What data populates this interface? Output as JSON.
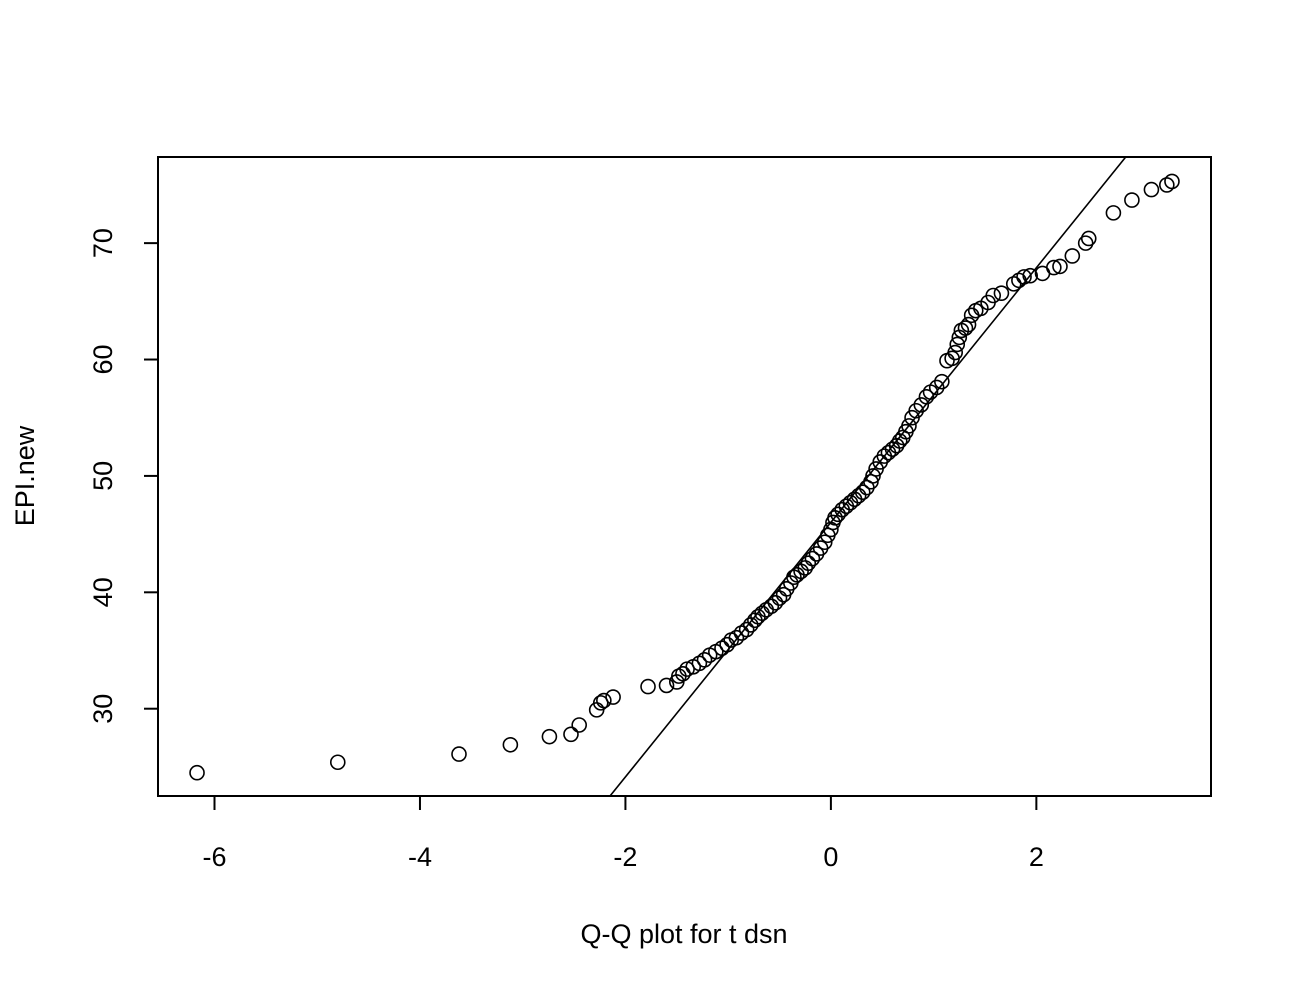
{
  "chart_data": {
    "type": "scatter",
    "title": "",
    "xlabel": "Q-Q plot for t dsn",
    "ylabel": "EPI.new",
    "xlim": [
      -6.55,
      3.7
    ],
    "ylim": [
      22.5,
      77.4
    ],
    "grid": false,
    "x_ticks": [
      {
        "value": -6,
        "label": "-6"
      },
      {
        "value": -4,
        "label": "-4"
      },
      {
        "value": -2,
        "label": "-2"
      },
      {
        "value": 0,
        "label": "0"
      },
      {
        "value": 2,
        "label": "2"
      }
    ],
    "y_ticks": [
      {
        "value": 30,
        "label": "30"
      },
      {
        "value": 40,
        "label": "40"
      },
      {
        "value": 50,
        "label": "50"
      },
      {
        "value": 60,
        "label": "60"
      },
      {
        "value": 70,
        "label": "70"
      }
    ],
    "reference_line": {
      "x": [
        -2.15,
        2.87
      ],
      "y": [
        22.5,
        77.4
      ]
    },
    "points": [
      [
        -6.17,
        24.5
      ],
      [
        -4.8,
        25.4
      ],
      [
        -3.62,
        26.1
      ],
      [
        -3.12,
        26.9
      ],
      [
        -2.74,
        27.6
      ],
      [
        -2.53,
        27.8
      ],
      [
        -2.45,
        28.6
      ],
      [
        -2.28,
        29.9
      ],
      [
        -2.24,
        30.5
      ],
      [
        -2.21,
        30.7
      ],
      [
        -2.12,
        31.0
      ],
      [
        -1.78,
        31.9
      ],
      [
        -1.6,
        32.0
      ],
      [
        -1.5,
        32.3
      ],
      [
        -1.48,
        32.8
      ],
      [
        -1.44,
        33.0
      ],
      [
        -1.4,
        33.4
      ],
      [
        -1.34,
        33.6
      ],
      [
        -1.28,
        33.9
      ],
      [
        -1.23,
        34.2
      ],
      [
        -1.18,
        34.6
      ],
      [
        -1.12,
        34.9
      ],
      [
        -1.06,
        35.2
      ],
      [
        -1.01,
        35.5
      ],
      [
        -0.97,
        35.9
      ],
      [
        -0.92,
        36.1
      ],
      [
        -0.87,
        36.5
      ],
      [
        -0.82,
        36.8
      ],
      [
        -0.78,
        37.2
      ],
      [
        -0.74,
        37.6
      ],
      [
        -0.71,
        37.9
      ],
      [
        -0.67,
        38.2
      ],
      [
        -0.63,
        38.5
      ],
      [
        -0.58,
        38.8
      ],
      [
        -0.54,
        39.1
      ],
      [
        -0.5,
        39.5
      ],
      [
        -0.46,
        39.8
      ],
      [
        -0.43,
        40.3
      ],
      [
        -0.39,
        40.8
      ],
      [
        -0.36,
        41.3
      ],
      [
        -0.33,
        41.5
      ],
      [
        -0.29,
        41.8
      ],
      [
        -0.25,
        42.1
      ],
      [
        -0.22,
        42.5
      ],
      [
        -0.18,
        42.9
      ],
      [
        -0.14,
        43.3
      ],
      [
        -0.1,
        43.8
      ],
      [
        -0.06,
        44.3
      ],
      [
        -0.03,
        44.9
      ],
      [
        0.0,
        45.4
      ],
      [
        0.02,
        46.0
      ],
      [
        0.04,
        46.4
      ],
      [
        0.07,
        46.7
      ],
      [
        0.11,
        47.1
      ],
      [
        0.15,
        47.4
      ],
      [
        0.19,
        47.7
      ],
      [
        0.23,
        48.0
      ],
      [
        0.27,
        48.3
      ],
      [
        0.31,
        48.6
      ],
      [
        0.35,
        49.0
      ],
      [
        0.39,
        49.5
      ],
      [
        0.41,
        50.0
      ],
      [
        0.44,
        50.6
      ],
      [
        0.48,
        51.2
      ],
      [
        0.52,
        51.7
      ],
      [
        0.56,
        52.0
      ],
      [
        0.6,
        52.3
      ],
      [
        0.64,
        52.6
      ],
      [
        0.67,
        53.0
      ],
      [
        0.7,
        53.3
      ],
      [
        0.73,
        53.8
      ],
      [
        0.76,
        54.3
      ],
      [
        0.79,
        55.0
      ],
      [
        0.83,
        55.6
      ],
      [
        0.88,
        56.1
      ],
      [
        0.93,
        56.8
      ],
      [
        0.97,
        57.2
      ],
      [
        1.03,
        57.6
      ],
      [
        1.08,
        58.1
      ],
      [
        1.13,
        59.9
      ],
      [
        1.18,
        60.1
      ],
      [
        1.21,
        60.6
      ],
      [
        1.23,
        61.3
      ],
      [
        1.25,
        61.9
      ],
      [
        1.27,
        62.5
      ],
      [
        1.31,
        62.7
      ],
      [
        1.34,
        63.0
      ],
      [
        1.37,
        63.8
      ],
      [
        1.41,
        64.2
      ],
      [
        1.46,
        64.4
      ],
      [
        1.53,
        64.9
      ],
      [
        1.58,
        65.5
      ],
      [
        1.66,
        65.7
      ],
      [
        1.78,
        66.5
      ],
      [
        1.83,
        66.8
      ],
      [
        1.88,
        67.1
      ],
      [
        1.94,
        67.2
      ],
      [
        2.06,
        67.4
      ],
      [
        2.17,
        67.9
      ],
      [
        2.23,
        68.0
      ],
      [
        2.35,
        68.9
      ],
      [
        2.48,
        70.0
      ],
      [
        2.51,
        70.4
      ],
      [
        2.75,
        72.6
      ],
      [
        2.93,
        73.7
      ],
      [
        3.12,
        74.6
      ],
      [
        3.27,
        75.0
      ],
      [
        3.32,
        75.3
      ]
    ]
  }
}
